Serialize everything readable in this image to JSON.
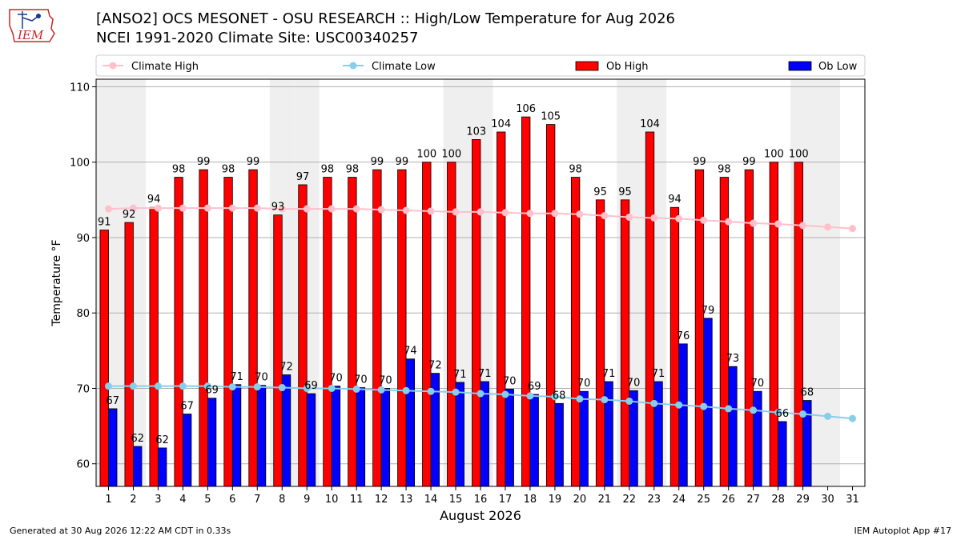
{
  "header": {
    "title": "[ANSO2] OCS MESONET - OSU RESEARCH :: High/Low Temperature for Aug 2026",
    "subtitle": "NCEI 1991-2020 Climate Site: USC00340257",
    "logo_text": "IEM"
  },
  "footer": {
    "generated": "Generated at 30 Aug 2026 12:22 AM CDT in 0.33s",
    "app": "IEM Autoplot App #17"
  },
  "chart_data": {
    "type": "bar",
    "xlabel": "August 2026",
    "ylabel": "Temperature °F",
    "ylim": [
      57,
      111
    ],
    "yticks": [
      60,
      70,
      80,
      90,
      100,
      110
    ],
    "grid": "horizontal",
    "legend": "top",
    "categories": [
      "1",
      "2",
      "3",
      "4",
      "5",
      "6",
      "7",
      "8",
      "9",
      "10",
      "11",
      "12",
      "13",
      "14",
      "15",
      "16",
      "17",
      "18",
      "19",
      "20",
      "21",
      "22",
      "23",
      "24",
      "25",
      "26",
      "27",
      "28",
      "29",
      "30",
      "31"
    ],
    "weekend_shading_days": [
      1,
      2,
      8,
      9,
      15,
      16,
      22,
      23,
      29,
      30
    ],
    "series": [
      {
        "name": "Ob High",
        "kind": "bar",
        "color": "#ff0000",
        "values": [
          91,
          92,
          94,
          98,
          99,
          98,
          99,
          93,
          97,
          98,
          98,
          99,
          99,
          100,
          100,
          103,
          104,
          106,
          105,
          98,
          95,
          95,
          104,
          94,
          99,
          98,
          99,
          100,
          100,
          null,
          null
        ],
        "labels": [
          "91",
          "92",
          "94",
          "98",
          "99",
          "98",
          "99",
          "93",
          "97",
          "98",
          "98",
          "99",
          "99",
          "100",
          "100",
          "103",
          "104",
          "106",
          "105",
          "98",
          "95",
          "95",
          "104",
          "94",
          "99",
          "98",
          "99",
          "100",
          "100",
          "",
          ""
        ]
      },
      {
        "name": "Ob Low",
        "kind": "bar",
        "color": "#0000ff",
        "values": [
          67.3,
          62.3,
          62.1,
          66.6,
          68.7,
          70.5,
          70.4,
          71.8,
          69.3,
          70.3,
          70.1,
          70.0,
          73.9,
          72.0,
          70.8,
          70.9,
          69.9,
          69.2,
          68.0,
          69.6,
          70.9,
          69.7,
          70.9,
          75.9,
          79.3,
          72.9,
          69.6,
          65.6,
          68.4,
          null,
          null
        ],
        "labels": [
          "67",
          "62",
          "62",
          "67",
          "69",
          "71",
          "70",
          "72",
          "69",
          "70",
          "70",
          "70",
          "74",
          "72",
          "71",
          "71",
          "70",
          "69",
          "68",
          "70",
          "71",
          "70",
          "71",
          "76",
          "79",
          "73",
          "70",
          "66",
          "68",
          "",
          ""
        ]
      },
      {
        "name": "Climate High",
        "kind": "line",
        "color": "#ffc0cb",
        "values": [
          93.8,
          93.9,
          93.9,
          93.9,
          93.9,
          93.9,
          93.9,
          93.8,
          93.8,
          93.8,
          93.8,
          93.7,
          93.6,
          93.5,
          93.4,
          93.4,
          93.3,
          93.2,
          93.2,
          93.1,
          92.9,
          92.7,
          92.6,
          92.5,
          92.3,
          92.1,
          91.9,
          91.8,
          91.6,
          91.4,
          91.2
        ]
      },
      {
        "name": "Climate Low",
        "kind": "line",
        "color": "#87ceeb",
        "values": [
          70.3,
          70.3,
          70.3,
          70.3,
          70.3,
          70.2,
          70.2,
          70.1,
          70.0,
          70.0,
          69.9,
          69.8,
          69.7,
          69.6,
          69.5,
          69.3,
          69.2,
          69.0,
          68.9,
          68.6,
          68.5,
          68.3,
          68.0,
          67.8,
          67.6,
          67.3,
          67.1,
          66.8,
          66.6,
          66.3,
          66.0
        ]
      }
    ]
  }
}
